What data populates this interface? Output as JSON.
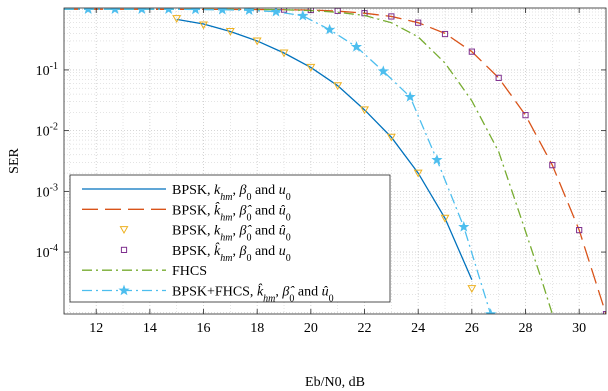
{
  "chart_data": {
    "type": "line",
    "xlabel": "Eb/N0, dB",
    "ylabel": "SER",
    "xlim": [
      10.8,
      31
    ],
    "ylim_log10": [
      -5.02,
      0.02
    ],
    "yscale": "log",
    "grid": "major and minor (dotted)",
    "legend_position": "lower-left",
    "x_ticks": [
      12,
      14,
      16,
      18,
      20,
      22,
      24,
      26,
      28,
      30
    ],
    "y_ticks": [
      {
        "exp": -1,
        "label": "10",
        "sup": "-1"
      },
      {
        "exp": -2,
        "label": "10",
        "sup": "-2"
      },
      {
        "exp": -3,
        "label": "10",
        "sup": "-3"
      },
      {
        "exp": -4,
        "label": "10",
        "sup": "-4"
      }
    ],
    "series": [
      {
        "id": "bpsk-true",
        "legend": "BPSK, k_hm, β_0 and u_0",
        "color": "#0072BD",
        "dash": "",
        "marker": "none",
        "x": [
          15,
          16,
          17,
          18,
          19,
          20,
          21,
          22,
          23,
          24,
          25,
          26
        ],
        "y": [
          0.68,
          0.57,
          0.43,
          0.3,
          0.19,
          0.11,
          0.055,
          0.022,
          0.0078,
          0.002,
          0.00036,
          3.5e-05
        ]
      },
      {
        "id": "bpsk-est-all",
        "legend": "BPSK, k̂_hm, β̂_0 and û_0",
        "color": "#D95319",
        "dash": "16,7",
        "marker": "none",
        "x": [
          10.8,
          16,
          18,
          20,
          21,
          22,
          23,
          24,
          25,
          26,
          27,
          28,
          29,
          30,
          31
        ],
        "y": [
          1.0,
          0.995,
          0.99,
          0.97,
          0.93,
          0.86,
          0.76,
          0.6,
          0.4,
          0.2,
          0.074,
          0.018,
          0.0027,
          0.00023,
          9.5e-06
        ]
      },
      {
        "id": "bpsk-true-k-markers",
        "legend": "BPSK, k_hm, β̂_0 and û_0",
        "color": "#EDB120",
        "marker": "triangle-down",
        "line": false,
        "x": [
          15,
          16,
          17,
          18,
          19,
          20,
          21,
          22,
          23,
          24,
          25,
          26
        ],
        "y": [
          0.7,
          0.55,
          0.43,
          0.3,
          0.19,
          0.11,
          0.055,
          0.022,
          0.0078,
          0.002,
          0.00036,
          2.5e-05
        ]
      },
      {
        "id": "bpsk-est-k-markers",
        "legend": "BPSK, k̂_hm, β_0 and u_0",
        "color": "#7E2F8E",
        "marker": "square",
        "line": false,
        "x": [
          19,
          20,
          21,
          22,
          23,
          24,
          25,
          26,
          27,
          28,
          29,
          30,
          31
        ],
        "y": [
          0.985,
          0.97,
          0.94,
          0.86,
          0.76,
          0.6,
          0.39,
          0.2,
          0.074,
          0.018,
          0.0027,
          0.00023,
          9.5e-06
        ]
      },
      {
        "id": "fhcs",
        "legend": "FHCS",
        "color": "#77AC30",
        "dash": "10,4,2,4",
        "marker": "none",
        "x": [
          10.8,
          18,
          19,
          20,
          21,
          22,
          23,
          24,
          25,
          26,
          27,
          28,
          28.6,
          29
        ],
        "y": [
          1.0,
          0.99,
          0.98,
          0.95,
          0.89,
          0.79,
          0.6,
          0.35,
          0.13,
          0.031,
          0.0045,
          0.00022,
          3.5e-05,
          9.5e-06
        ]
      },
      {
        "id": "bpsk-fhcs",
        "legend": "BPSK+FHCS, k̂_hm, β̂_0 and û_0",
        "color": "#4DBEEE",
        "dash": "10,4,2,4",
        "marker": "star",
        "x": [
          10.8,
          11.7,
          12.7,
          13.7,
          14.7,
          15.7,
          16.7,
          17.7,
          18.7,
          19.7,
          20.7,
          21.7,
          22.7,
          23.7,
          24.7,
          25.7,
          26.7
        ],
        "y": [
          1.0,
          1.0,
          1.0,
          1.0,
          1.0,
          0.99,
          0.98,
          0.96,
          0.91,
          0.78,
          0.46,
          0.24,
          0.095,
          0.036,
          0.0033,
          0.00026,
          9.5e-06
        ]
      }
    ]
  }
}
